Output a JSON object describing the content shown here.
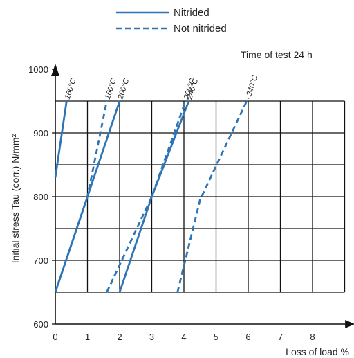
{
  "chart_data": {
    "type": "line",
    "title": "",
    "annotation": "Time of test 24 h",
    "xlabel": "Loss of load %",
    "ylabel": "Initial stress Tau (corr.) N/mm²",
    "xlim": [
      0,
      9
    ],
    "ylim": [
      600,
      1000
    ],
    "x_ticks": [
      0,
      1,
      2,
      3,
      4,
      5,
      6,
      7,
      8
    ],
    "y_ticks": [
      600,
      700,
      800,
      900,
      1000
    ],
    "grid": true,
    "grid_bottom": 650,
    "legend_placement": "top-center",
    "legend": [
      {
        "label": "Nitrided",
        "style": "solid"
      },
      {
        "label": "Not nitrided",
        "style": "dashed"
      }
    ],
    "line_color": "#2e75b6",
    "series": [
      {
        "name": "160°C",
        "group": "Nitrided",
        "style": "solid",
        "label": "160°C",
        "points": [
          [
            0,
            830
          ],
          [
            0.35,
            950
          ]
        ]
      },
      {
        "name": "160°C",
        "group": "Not nitrided",
        "style": "dashed",
        "label": "160°C",
        "points": [
          [
            0,
            650
          ],
          [
            1.0,
            800
          ],
          [
            1.6,
            950
          ]
        ]
      },
      {
        "name": "200°C",
        "group": "Nitrided",
        "style": "solid",
        "label": "200°C",
        "points": [
          [
            0,
            650
          ],
          [
            1.0,
            800
          ],
          [
            2.0,
            950
          ]
        ]
      },
      {
        "name": "200°C",
        "group": "Not nitrided",
        "style": "dashed",
        "label": "200°C",
        "points": [
          [
            1.6,
            650
          ],
          [
            3.0,
            800
          ],
          [
            4.05,
            950
          ]
        ]
      },
      {
        "name": "240°C",
        "group": "Nitrided",
        "style": "solid",
        "label": "240°C",
        "points": [
          [
            2.0,
            650
          ],
          [
            3.0,
            800
          ],
          [
            4.15,
            950
          ]
        ]
      },
      {
        "name": "240°C",
        "group": "Not nitrided",
        "style": "dashed",
        "label": "240°C",
        "points": [
          [
            3.8,
            650
          ],
          [
            4.5,
            795
          ],
          [
            6.0,
            955
          ]
        ]
      }
    ]
  }
}
